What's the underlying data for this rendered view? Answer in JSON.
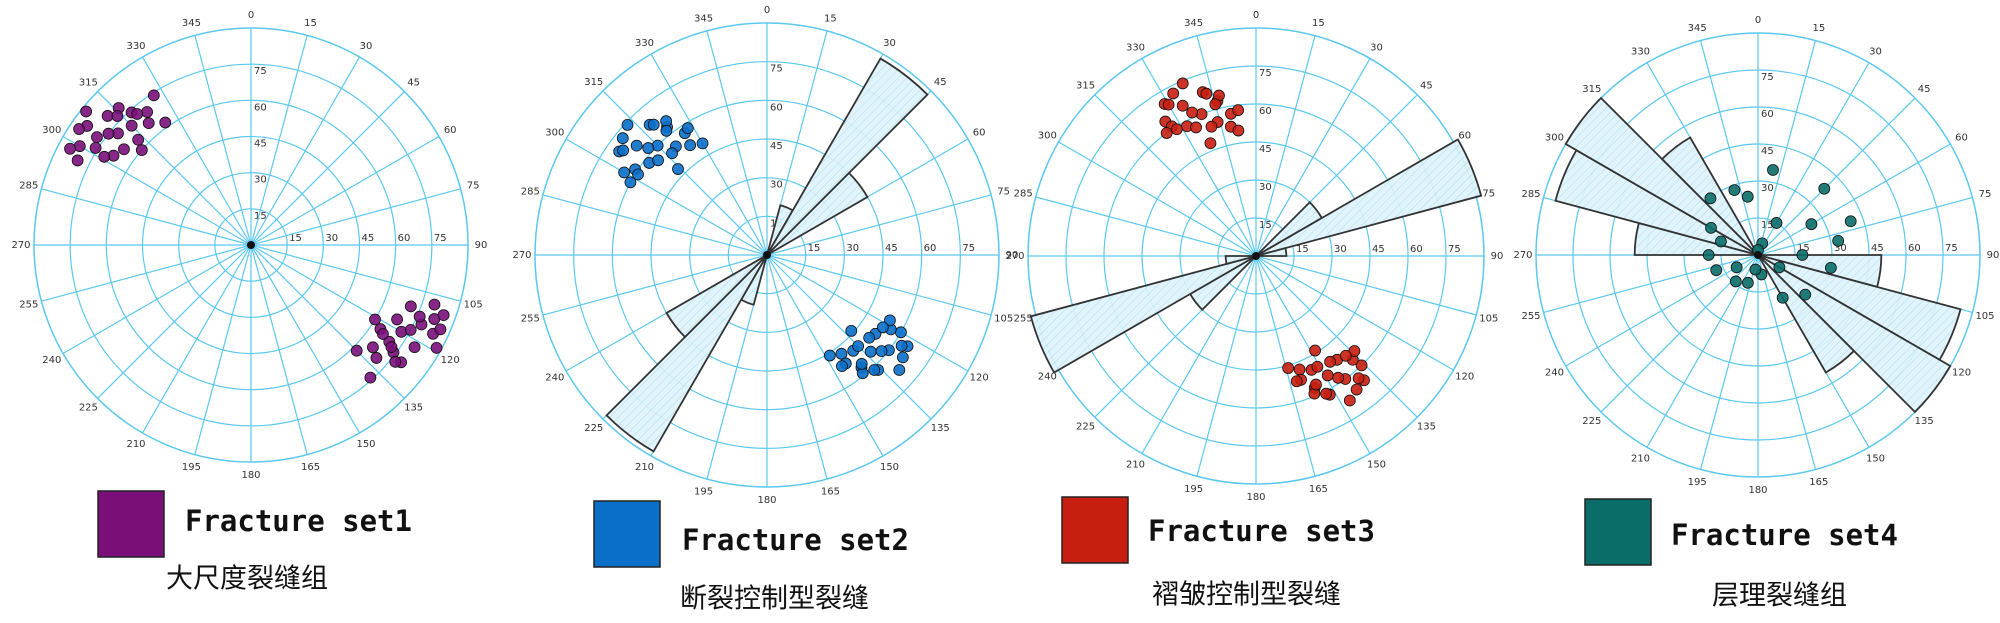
{
  "chart_data": [
    {
      "type": "polar",
      "legend": "Fracture set1",
      "subtitle": "大尺度裂缝组",
      "color": "#7a0f7a",
      "rlim": [
        0,
        90
      ],
      "rticks": [
        15,
        30,
        45,
        60,
        75
      ],
      "angle_ticks": [
        0,
        15,
        30,
        45,
        60,
        75,
        90,
        105,
        120,
        135,
        150,
        165,
        180,
        195,
        210,
        225,
        240,
        255,
        270,
        285,
        300,
        315,
        330,
        345
      ],
      "points": [
        {
          "theta": [
            310,
            305,
            315,
            300,
            320,
            308,
            312,
            298,
            325,
            303,
            318,
            311,
            306,
            302,
            316,
            322,
            309,
            296,
            313,
            319,
            304,
            307,
            314,
            301,
            327
          ],
          "r": [
            72,
            78,
            70,
            82,
            66,
            75,
            80,
            85,
            62,
            68,
            74,
            60,
            84,
            76,
            79,
            70,
            88,
            80,
            64,
            72,
            86,
            66,
            77,
            71,
            74
          ]
        },
        {
          "theta": [
            120,
            115,
            125,
            112,
            130,
            118,
            122,
            110,
            135,
            117,
            127,
            121,
            116,
            113,
            128,
            132,
            119,
            108,
            123,
            126,
            114,
            124,
            129,
            111,
            138
          ],
          "r": [
            72,
            78,
            70,
            82,
            66,
            75,
            80,
            85,
            62,
            68,
            74,
            60,
            84,
            76,
            79,
            70,
            88,
            80,
            64,
            72,
            86,
            66,
            77,
            71,
            74
          ]
        }
      ]
    },
    {
      "type": "polar",
      "legend": "Fracture set2",
      "subtitle": "断裂控制型裂缝",
      "color": "#0a6fc9",
      "rlim": [
        0,
        90
      ],
      "rticks": [
        15,
        30,
        45,
        60,
        75
      ],
      "angle_ticks": [
        0,
        15,
        30,
        45,
        60,
        75,
        90,
        105,
        120,
        135,
        150,
        165,
        180,
        195,
        210,
        225,
        240,
        255,
        270,
        285,
        300,
        315,
        330,
        345
      ],
      "points": [
        {
          "theta": [
            315,
            310,
            320,
            305,
            325,
            312,
            318,
            300,
            330,
            308,
            322,
            314,
            309,
            303,
            319,
            326,
            313,
            298,
            317,
            323,
            306,
            311,
            321,
            302,
            328
          ],
          "r": [
            60,
            66,
            55,
            70,
            52,
            62,
            68,
            64,
            50,
            58,
            63,
            48,
            72,
            61,
            67,
            57,
            74,
            60,
            54,
            65,
            69,
            56,
            62,
            59,
            58
          ]
        },
        {
          "theta": [
            133,
            128,
            138,
            123,
            143,
            130,
            136,
            120,
            148,
            126,
            140,
            132,
            127,
            121,
            137,
            144,
            131,
            118,
            135,
            141,
            124,
            129,
            139,
            122,
            146
          ],
          "r": [
            55,
            60,
            50,
            65,
            48,
            58,
            62,
            60,
            46,
            52,
            57,
            44,
            66,
            56,
            61,
            52,
            68,
            54,
            50,
            59,
            63,
            51,
            56,
            53,
            52
          ]
        }
      ],
      "rose": {
        "start": [
          15,
          30,
          45,
          195,
          210,
          225
        ],
        "values": [
          20,
          88,
          45,
          20,
          88,
          45
        ]
      }
    },
    {
      "type": "polar",
      "legend": "Fracture set3",
      "subtitle": "褶皱控制型裂缝",
      "color": "#c81e10",
      "rlim": [
        0,
        90
      ],
      "rticks": [
        15,
        30,
        45,
        60,
        75
      ],
      "angle_ticks": [
        0,
        15,
        30,
        45,
        60,
        75,
        90,
        105,
        120,
        135,
        150,
        165,
        180,
        195,
        210,
        225,
        240,
        255,
        270,
        285,
        300,
        315,
        330,
        345
      ],
      "points": [
        {
          "theta": [
            339,
            334,
            344,
            329,
            349,
            336,
            342,
            326,
            352,
            332,
            346,
            338,
            333,
            327,
            343,
            350,
            337,
            324,
            341,
            347,
            330,
            335,
            345,
            328,
            353
          ],
          "r": [
            60,
            66,
            55,
            70,
            52,
            62,
            68,
            64,
            50,
            58,
            63,
            48,
            72,
            61,
            67,
            57,
            74,
            60,
            54,
            65,
            69,
            56,
            62,
            59,
            58
          ]
        },
        {
          "theta": [
            149,
            144,
            154,
            139,
            159,
            146,
            152,
            136,
            164,
            142,
            156,
            148,
            143,
            137,
            153,
            160,
            147,
            134,
            151,
            157,
            140,
            145,
            155,
            138,
            162
          ],
          "r": [
            55,
            60,
            50,
            65,
            48,
            58,
            62,
            60,
            46,
            52,
            57,
            44,
            66,
            56,
            61,
            52,
            68,
            54,
            50,
            59,
            63,
            51,
            56,
            53,
            52
          ]
        }
      ],
      "rose": {
        "start": [
          45,
          60,
          75,
          225,
          240,
          255
        ],
        "values": [
          30,
          92,
          12,
          30,
          92,
          12
        ]
      }
    },
    {
      "type": "polar",
      "legend": "Fracture set4",
      "subtitle": "层理裂缝组",
      "color": "#0b6d68",
      "rlim": [
        0,
        90
      ],
      "rticks": [
        15,
        30,
        45,
        60,
        75
      ],
      "angle_ticks": [
        0,
        15,
        30,
        45,
        60,
        75,
        90,
        105,
        120,
        135,
        150,
        165,
        180,
        195,
        210,
        225,
        240,
        255,
        270,
        285,
        300,
        315,
        330,
        345
      ],
      "points": [
        {
          "theta": [
            30,
            60,
            100,
            150,
            200,
            250,
            300,
            340,
            10,
            45,
            80,
            120,
            170,
            220,
            270,
            320,
            20,
            70,
            130,
            190,
            240,
            290,
            350,
            90,
            0
          ],
          "r": [
            15,
            25,
            30,
            20,
            12,
            18,
            22,
            28,
            35,
            38,
            33,
            10,
            8,
            14,
            20,
            30,
            5,
            40,
            25,
            6,
            10,
            16,
            24,
            18,
            2
          ]
        }
      ],
      "rose": {
        "start": [
          270,
          285,
          300,
          315,
          90,
          105,
          120,
          135
        ],
        "values": [
          50,
          85,
          90,
          55,
          50,
          85,
          90,
          55
        ]
      }
    }
  ]
}
